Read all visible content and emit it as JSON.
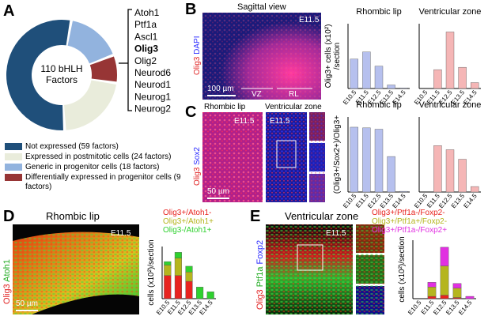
{
  "panels": {
    "A": {
      "letter": "A",
      "genes": [
        "Atoh1",
        "Ptf1a",
        "Ascl1",
        "Olig3",
        "Olig2",
        "Neurod6",
        "Neurod1",
        "Neurog1",
        "Neurog2"
      ]
    },
    "B": {
      "letter": "B",
      "title": "Sagittal view",
      "stage": "E11.5",
      "stain": [
        "Olig3",
        "DAPI"
      ],
      "scale": "100 µm",
      "regions": [
        "VZ",
        "RL"
      ]
    },
    "C": {
      "letter": "C",
      "titles": [
        "Rhombic lip",
        "Ventricular zone"
      ],
      "stages": [
        "E11.5",
        "E11.5"
      ],
      "stain": [
        "Olig3",
        "Sox2"
      ],
      "scale": "50 µm"
    },
    "D": {
      "letter": "D",
      "title": "Rhombic lip",
      "stage": "E11.5",
      "stain": [
        "Olig3",
        "Atoh1"
      ],
      "scale": "50 µm"
    },
    "E": {
      "letter": "E",
      "title": "Ventricular zone",
      "stage": "E11.5",
      "stain": [
        "Olig3",
        "Ptf1a",
        "Foxp2"
      ]
    }
  },
  "chart_data": [
    {
      "type": "pie",
      "center_label": [
        "110 bHLH",
        "Factors"
      ],
      "categories": [
        "Not expressed (59 factors)",
        "Expressed in postmitotic cells (24 factors)",
        "Generic in progenitor cells (18 factors)",
        "Differentially expressed in progenitor cells (9 factors)"
      ],
      "values": [
        59,
        24,
        18,
        9
      ],
      "colors": [
        "#1f4f7a",
        "#e9ecdb",
        "#92b3de",
        "#973535"
      ]
    },
    {
      "type": "bar",
      "title": "Rhombic lip",
      "y_label": [
        "Olig3+ cells (x10²)",
        "/section"
      ],
      "categories": [
        "E10.5",
        "E11.5",
        "E12.5",
        "E13.5",
        "E14.5"
      ],
      "values": [
        2.5,
        3.1,
        1.9,
        0.3,
        0.05
      ],
      "color": "#b6c0ee",
      "ylim": [
        0,
        5.5
      ]
    },
    {
      "type": "bar",
      "title": "Ventricular zone",
      "categories": [
        "E10.5",
        "E11.5",
        "E12.5",
        "E13.5",
        "E14.5"
      ],
      "values": [
        0,
        1.6,
        4.8,
        1.8,
        0.5
      ],
      "color": "#f5b6b6",
      "ylim": [
        0,
        5.5
      ]
    },
    {
      "type": "bar",
      "title": "Rhombic lip",
      "y_label": [
        "(Olig3+/Sox2+)/Olig3+"
      ],
      "categories": [
        "E10.5",
        "E11.5",
        "E12.5",
        "E13.5",
        "E14.5"
      ],
      "values": [
        0.95,
        0.94,
        0.92,
        0.52,
        0.01
      ],
      "color": "#b6c0ee",
      "ylim": [
        0,
        1.1
      ]
    },
    {
      "type": "bar",
      "title": "Ventricular zone",
      "categories": [
        "E10.5",
        "E11.5",
        "E12.5",
        "E13.5",
        "E14.5"
      ],
      "values": [
        0,
        0.68,
        0.62,
        0.48,
        0.08
      ],
      "color": "#f5b6b6",
      "ylim": [
        0,
        1.1
      ]
    },
    {
      "type": "stacked_bar",
      "y_label": [
        "cells (x10²)/section"
      ],
      "categories": [
        "E10.5",
        "E11.5",
        "E12.5",
        "E13.5",
        "E14.5"
      ],
      "ylim": [
        0,
        4.5
      ],
      "series": [
        {
          "name": "Olig3+/Atoh1-",
          "color": "#e8231f",
          "values": [
            2.0,
            2.0,
            1.5,
            0,
            0
          ]
        },
        {
          "name": "Olig3+/Atoh1+",
          "color": "#b5b51e",
          "values": [
            0.9,
            1.5,
            0.8,
            0,
            0
          ]
        },
        {
          "name": "Olig3-/Atoh1+",
          "color": "#2fd12f",
          "values": [
            0.3,
            0.5,
            0.5,
            1.0,
            0.6
          ]
        }
      ]
    },
    {
      "type": "stacked_bar",
      "y_label": [
        "cells (x10²)/section"
      ],
      "categories": [
        "E10.5",
        "E11.5",
        "E12.5",
        "E13.5",
        "E14.5"
      ],
      "ylim": [
        0,
        5
      ],
      "series": [
        {
          "name": "Olig3+/Ptf1a-/Foxp2-",
          "color": "#e8231f",
          "values": [
            0,
            0.2,
            0.3,
            0.1,
            0
          ]
        },
        {
          "name": "Olig3+/Ptf1a+/Foxp2-",
          "color": "#b5b51e",
          "values": [
            0,
            0.8,
            2.5,
            0.8,
            0
          ]
        },
        {
          "name": "Olig3+/Ptf1a-/Foxp2+",
          "color": "#e130e1",
          "values": [
            0,
            0.4,
            1.6,
            0.4,
            0.2
          ]
        }
      ]
    }
  ]
}
